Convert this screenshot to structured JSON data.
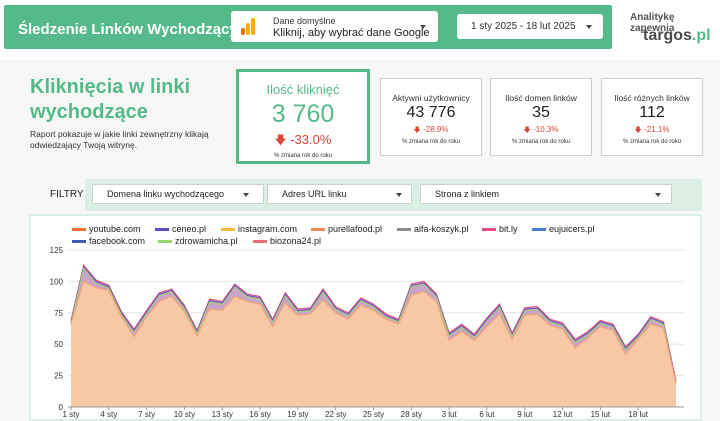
{
  "header": {
    "title": "Śledzenie Linków Wychodzących",
    "data_source": {
      "line1": "Dane domyślne",
      "line2": "Kliknij, aby wybrać dane Google"
    },
    "date_range": "1 sty 2025 - 18 lut 2025",
    "brand_tagline": "Analitykę zapewnia",
    "brand_name": "targos",
    "brand_suffix": ".pl"
  },
  "intro": {
    "title_line1": "Kliknięcia w linki",
    "title_line2": "wychodzące",
    "desc_line1": "Raport pokazuje w jakie linki zewnętrzny klikają",
    "desc_line2": "odwiedzający Twoją witrynę."
  },
  "kpis": {
    "main": {
      "label": "Ilość kliknięć",
      "value": "3 760",
      "change": "-33.0%",
      "sub": "% zmiana rok do roku"
    },
    "users": {
      "label": "Aktywni użytkownicy",
      "value": "43 776",
      "change": "-28.9%",
      "sub": "% zmiana rok do roku"
    },
    "domains": {
      "label": "Ilość domen linków",
      "value": "35",
      "change": "-10.3%",
      "sub": "% zmiana rok do roku"
    },
    "links": {
      "label": "Ilość różnych linków",
      "value": "112",
      "change": "-21.1%",
      "sub": "% zmiana rok do roku"
    }
  },
  "filters": {
    "label": "FILTRY",
    "domain": "Domena linku wychodzącego",
    "url": "Adres URL linku",
    "page": "Strona z linkiem"
  },
  "colors": {
    "accent": "#56b98a",
    "negative": "#e04438",
    "area_fill": "#f7c7a6",
    "area_line": "#f0a677"
  },
  "icons": {
    "ga": "google-analytics-icon",
    "dropdown": "caret-down-icon",
    "down_arrow": "arrow-down-icon"
  },
  "chart_data": {
    "type": "area",
    "series": [
      {
        "name": "youtube.com",
        "color": "#e8762d"
      },
      {
        "name": "ceneo.pl",
        "color": "#5c4fc9"
      },
      {
        "name": "instagram.com",
        "color": "#f5b942"
      },
      {
        "name": "purellafood.pl",
        "color": "#f08a5d"
      },
      {
        "name": "alfa-koszyk.pl",
        "color": "#8c8c8c"
      },
      {
        "name": "bit.ly",
        "color": "#e94b7a"
      },
      {
        "name": "eujuicers.pl",
        "color": "#4a7fd9"
      },
      {
        "name": "facebook.com",
        "color": "#3f5db5"
      },
      {
        "name": "zdrowamicha.pl",
        "color": "#9ed46b"
      },
      {
        "name": "biozona24.pl",
        "color": "#e56b7f"
      }
    ],
    "x_tick_labels": [
      "1 sty",
      "4 sty",
      "7 sty",
      "10 sty",
      "13 sty",
      "16 sty",
      "19 sty",
      "22 sty",
      "25 sty",
      "28 sty",
      "3 lut",
      "6 lut",
      "9 lut",
      "12 lut",
      "15 lut",
      "18 lut"
    ],
    "y_ticks": [
      0,
      25,
      50,
      75,
      100,
      125
    ],
    "ylim": [
      0,
      125
    ],
    "total_values": [
      69,
      113,
      101,
      97,
      76,
      62,
      77,
      91,
      94,
      81,
      61,
      86,
      84,
      98,
      90,
      88,
      70,
      91,
      78,
      79,
      94,
      80,
      75,
      87,
      82,
      74,
      70,
      98,
      100,
      90,
      59,
      66,
      58,
      71,
      82,
      59,
      79,
      80,
      70,
      67,
      54,
      60,
      69,
      66,
      48,
      58,
      72,
      68,
      21
    ],
    "base_values": [
      66,
      100,
      95,
      93,
      72,
      56,
      72,
      84,
      88,
      76,
      57,
      78,
      77,
      88,
      84,
      82,
      64,
      83,
      73,
      74,
      85,
      75,
      70,
      81,
      77,
      70,
      66,
      89,
      92,
      84,
      53,
      60,
      53,
      64,
      74,
      54,
      73,
      74,
      65,
      62,
      47,
      55,
      64,
      61,
      42,
      54,
      66,
      63,
      19
    ]
  }
}
